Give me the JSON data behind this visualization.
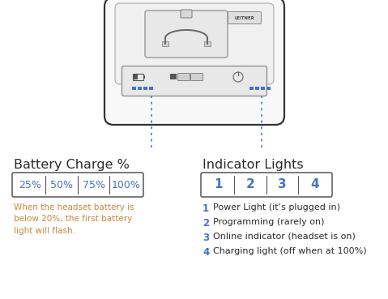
{
  "background_color": "#ffffff",
  "title_battery": "Battery Charge %",
  "title_indicator": "Indicator Lights",
  "battery_labels": [
    "25%",
    "50%",
    "75%",
    "100%"
  ],
  "indicator_labels": [
    "1",
    "2",
    "3",
    "4"
  ],
  "blue_color": "#4472c4",
  "text_color": "#2a2a2a",
  "orange_text": "#c8873a",
  "box_border": "#555555",
  "note_text": "When the headset battery is\nbelow 20%, the first battery\nlight will flash.",
  "indicator_notes": [
    "Power Light (it’s plugged in)",
    "Programming (rarely on)",
    "Online indicator (headset is on)",
    "Charging light (off when at 100%)"
  ],
  "dotted_line_color": "#4472c4",
  "device_border": "#333333",
  "device_face": "#f8f8f8",
  "strip_face": "#e8e8e8",
  "cradle_face": "#efefef",
  "leitner_text": "LEITNER"
}
